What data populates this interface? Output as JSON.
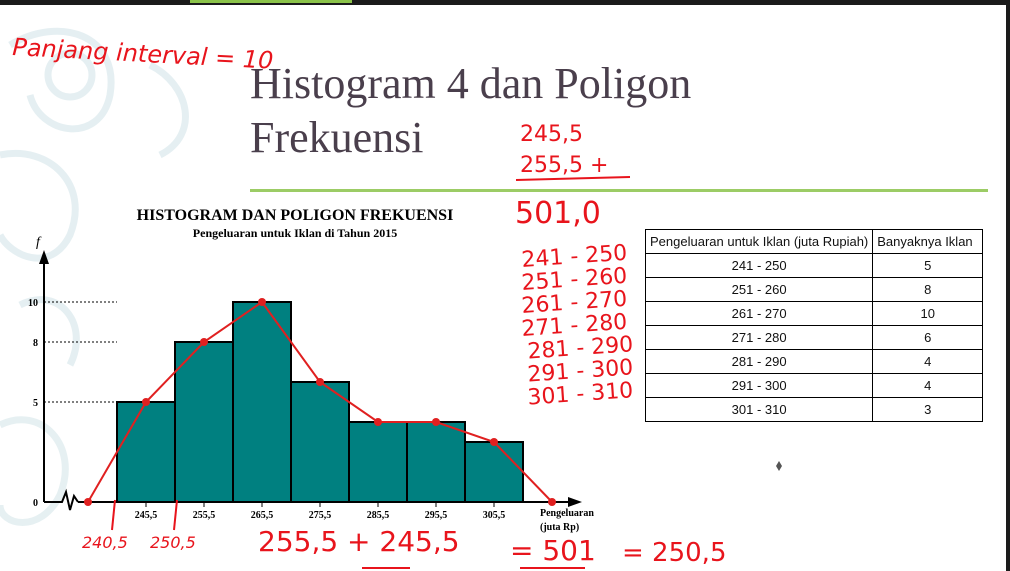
{
  "slide": {
    "title_line1": "Histogram 4 dan Poligon",
    "title_line2": "Frekuensi"
  },
  "colors": {
    "bar": "#008080",
    "polygon": "#e02020",
    "accent": "#9ccc65",
    "title": "#4a3f4c",
    "ink": "#e8141c"
  },
  "chart_data": {
    "type": "bar",
    "title": "HISTOGRAM DAN POLIGON FREKUENSI",
    "subtitle": "Pengeluaran untuk Iklan di Tahun  2015",
    "ylabel": "f",
    "xlabel_line1": "Pengeluaran",
    "xlabel_line2": "(juta Rp)",
    "categories": [
      "245,5",
      "255,5",
      "265,5",
      "275,5",
      "285,5",
      "295,5",
      "305,5"
    ],
    "values": [
      5,
      8,
      10,
      6,
      4,
      4,
      3
    ],
    "polygon_x": [
      235.5,
      245.5,
      255.5,
      265.5,
      275.5,
      285.5,
      295.5,
      305.5,
      315.5
    ],
    "polygon_y": [
      0,
      5,
      8,
      10,
      6,
      4,
      4,
      3,
      0
    ],
    "y_ticks": [
      "0",
      "5",
      "8",
      "10"
    ],
    "ylim": [
      0,
      10
    ]
  },
  "table": {
    "headers": [
      "Pengeluaran untuk Iklan (juta Rupiah)",
      "Banyaknya Iklan"
    ],
    "rows": [
      [
        "241  -  250",
        "5"
      ],
      [
        "251  -  260",
        "8"
      ],
      [
        "261  -  270",
        "10"
      ],
      [
        "271  -  280",
        "6"
      ],
      [
        "281  -  290",
        "4"
      ],
      [
        "291  -  300",
        "4"
      ],
      [
        "301  -  310",
        "3"
      ]
    ]
  },
  "annotations": {
    "interval_note": "Panjang interval = 10",
    "sum1": "245,5",
    "sum2": "255,5 +",
    "sum_total": "501,0",
    "ranges": [
      "241 - 250",
      "251 - 260",
      "261 - 270",
      "271 - 280",
      "281 - 290",
      "291 - 300",
      "301 - 310"
    ],
    "bound1": "240,5",
    "bound2": "250,5",
    "formula": "255,5 + 245,5",
    "result": "= 501",
    "midpoint": "= 250,5"
  }
}
